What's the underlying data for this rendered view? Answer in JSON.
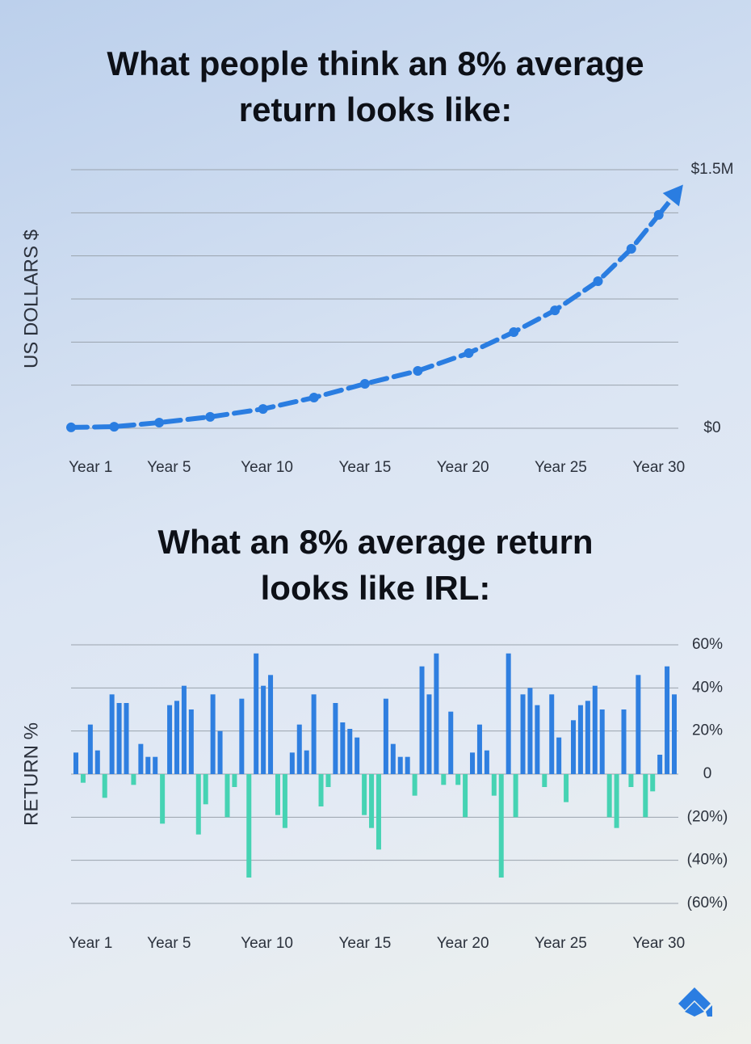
{
  "chart_data": [
    {
      "type": "line",
      "title": "What people think an 8% average return looks like:",
      "ylabel": "US DOLLARS $",
      "x": [
        0,
        2.2,
        4.5,
        7.1,
        9.8,
        12.4,
        15,
        17.7,
        20.3,
        22.6,
        24.7,
        26.9,
        28.6,
        30
      ],
      "series": [
        {
          "color": "#2a7de1",
          "values": [
            5000,
            9000,
            33000,
            66000,
            112000,
            178000,
            258000,
            333000,
            436000,
            558000,
            684000,
            853000,
            1041000,
            1238000
          ]
        }
      ],
      "xlim": [
        0,
        31
      ],
      "xticks": [
        {
          "value": 1,
          "label": "Year 1"
        },
        {
          "value": 5,
          "label": "Year 5"
        },
        {
          "value": 10,
          "label": "Year 10"
        },
        {
          "value": 15,
          "label": "Year 15"
        },
        {
          "value": 20,
          "label": "Year 20"
        },
        {
          "value": 25,
          "label": "Year 25"
        },
        {
          "value": 30,
          "label": "Year 30"
        }
      ],
      "ylim": [
        0,
        1500000
      ],
      "yticks": [
        {
          "value": 0,
          "label": "$0"
        },
        {
          "value": 1500000,
          "label": "$1.5M"
        }
      ],
      "ygrid": [
        0,
        250000,
        500000,
        750000,
        1000000,
        1250000,
        1500000
      ]
    },
    {
      "type": "bar",
      "title": "What an 8% average return looks like IRL:",
      "ylabel": "RETURN %",
      "values": [
        10,
        -4,
        23,
        11,
        -11,
        37,
        33,
        33,
        -5,
        14,
        8,
        8,
        -23,
        32,
        34,
        41,
        30,
        -28,
        -14,
        37,
        20,
        -20,
        -6,
        35,
        -48,
        56,
        41,
        46,
        -19,
        -25,
        10,
        23,
        11,
        37,
        -15,
        -6,
        33,
        24,
        21,
        17,
        -19,
        -25,
        -35,
        35,
        14,
        8,
        8,
        -10,
        50,
        37,
        56,
        -5,
        29,
        -5,
        -20,
        10,
        23,
        11,
        -10,
        -48,
        56,
        -20,
        37,
        40,
        32,
        -6,
        37,
        17,
        -13,
        25,
        32,
        34,
        41,
        30,
        -20,
        -25,
        30,
        -6,
        46,
        -20,
        -8,
        9,
        50,
        37
      ],
      "positive_color": "#2f7fe0",
      "negative_color": "#46d3b3",
      "xlim": [
        0,
        31
      ],
      "xticks": [
        {
          "value": 1,
          "label": "Year 1"
        },
        {
          "value": 5,
          "label": "Year 5"
        },
        {
          "value": 10,
          "label": "Year 10"
        },
        {
          "value": 15,
          "label": "Year 15"
        },
        {
          "value": 20,
          "label": "Year 20"
        },
        {
          "value": 25,
          "label": "Year 25"
        },
        {
          "value": 30,
          "label": "Year 30"
        }
      ],
      "ylim": [
        -60,
        60
      ],
      "yticks": [
        {
          "value": 60,
          "label": "60%"
        },
        {
          "value": 40,
          "label": "40%"
        },
        {
          "value": 20,
          "label": "20%"
        },
        0,
        {
          "value": -20,
          "label": "(20%)"
        },
        {
          "value": -40,
          "label": "(40%)"
        },
        {
          "value": -60,
          "label": "(60%)"
        }
      ],
      "grid": true
    }
  ]
}
